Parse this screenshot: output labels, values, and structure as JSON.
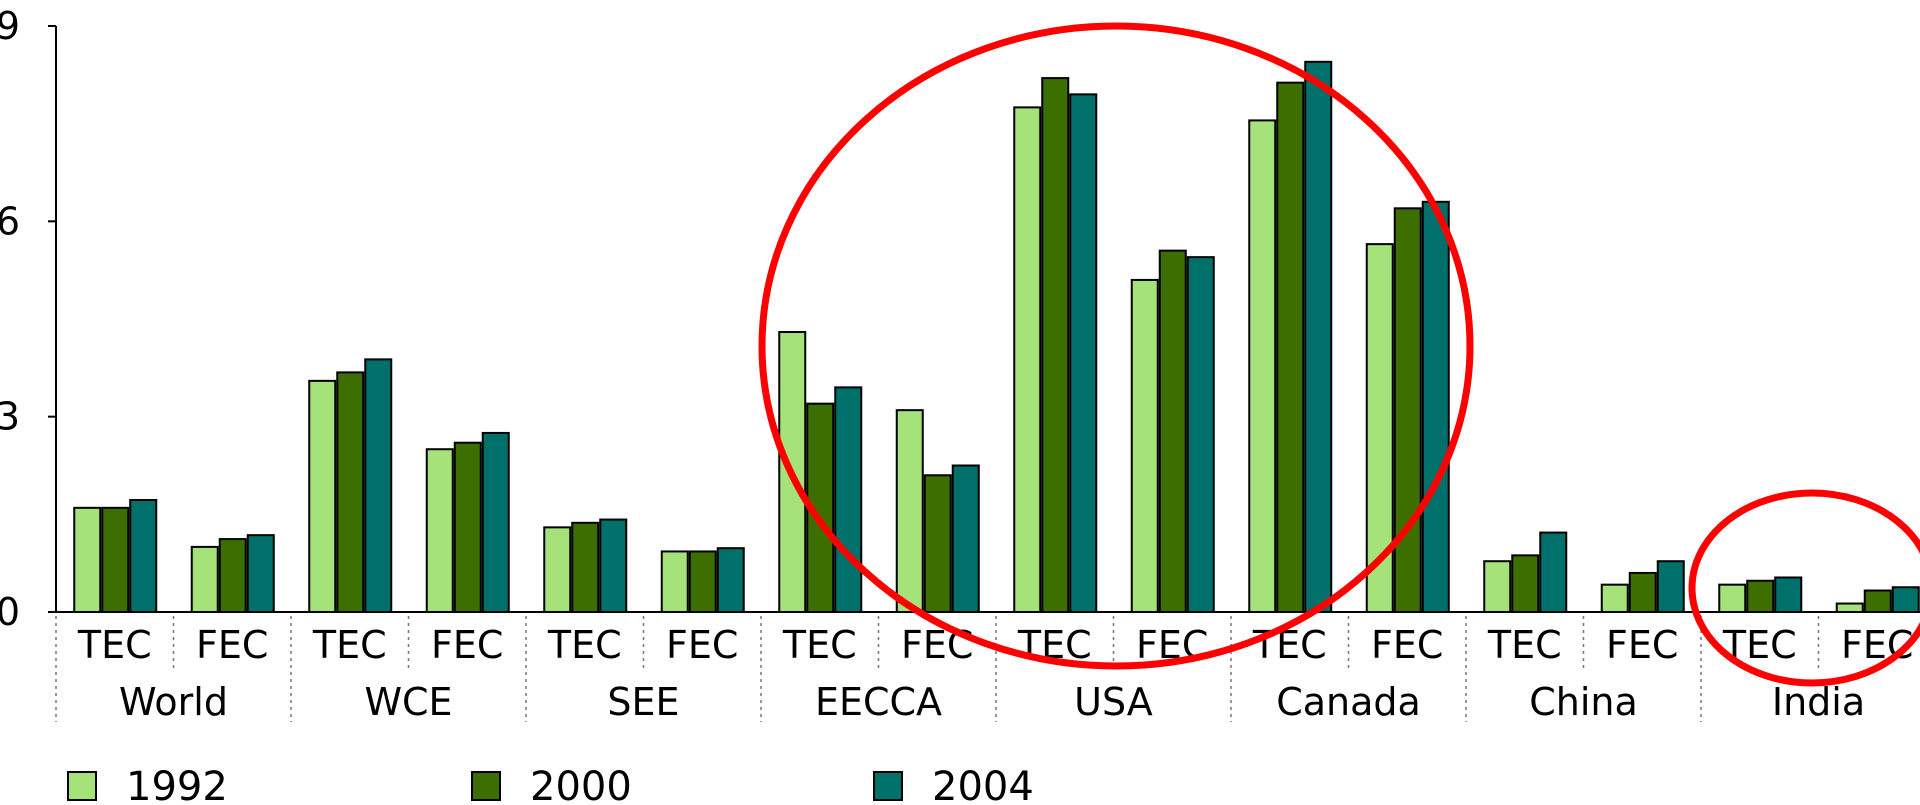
{
  "chart_data": {
    "type": "bar",
    "ylim": [
      0,
      9
    ],
    "yticks": [
      0,
      3,
      6,
      9
    ],
    "grid": false,
    "legend_position": "bottom",
    "groups": [
      "World",
      "WCE",
      "SEE",
      "EECCA",
      "USA",
      "Canada",
      "China",
      "India"
    ],
    "subcategories": [
      "TEC",
      "FEC"
    ],
    "categories": [
      "World TEC",
      "World FEC",
      "WCE TEC",
      "WCE FEC",
      "SEE TEC",
      "SEE FEC",
      "EECCA TEC",
      "EECCA FEC",
      "USA TEC",
      "USA FEC",
      "Canada TEC",
      "Canada FEC",
      "China TEC",
      "China FEC",
      "India TEC",
      "India FEC"
    ],
    "series": [
      {
        "name": "1992",
        "color": "#a6e27a",
        "values": [
          1.6,
          1.0,
          3.55,
          2.5,
          1.3,
          0.93,
          4.3,
          3.1,
          7.75,
          5.1,
          7.55,
          5.65,
          0.78,
          0.42,
          0.42,
          0.13
        ]
      },
      {
        "name": "2000",
        "color": "#3c6f00",
        "values": [
          1.6,
          1.12,
          3.68,
          2.6,
          1.37,
          0.93,
          3.2,
          2.1,
          8.2,
          5.55,
          8.13,
          6.2,
          0.87,
          0.6,
          0.48,
          0.33
        ]
      },
      {
        "name": "2004",
        "color": "#00706a",
        "values": [
          1.72,
          1.18,
          3.88,
          2.75,
          1.42,
          0.98,
          3.45,
          2.25,
          7.95,
          5.45,
          8.45,
          6.3,
          1.22,
          0.78,
          0.53,
          0.38
        ]
      }
    ],
    "annotations": [
      {
        "type": "ellipse",
        "color": "#ff0000",
        "around": [
          "EECCA",
          "USA",
          "Canada"
        ]
      },
      {
        "type": "ellipse",
        "color": "#ff0000",
        "around": [
          "India"
        ]
      }
    ]
  }
}
